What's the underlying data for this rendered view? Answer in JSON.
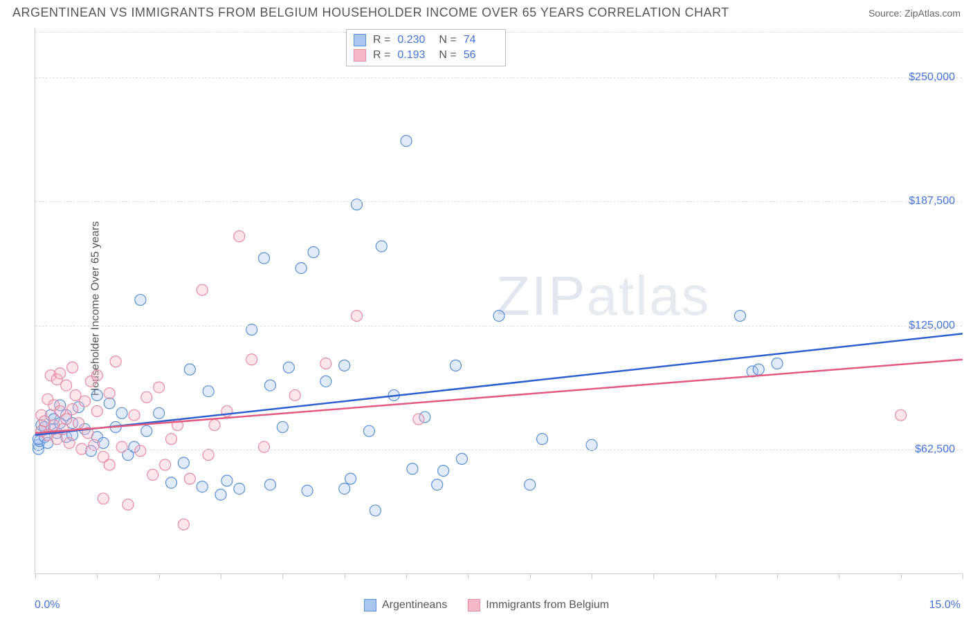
{
  "header": {
    "title": "ARGENTINEAN VS IMMIGRANTS FROM BELGIUM HOUSEHOLDER INCOME OVER 65 YEARS CORRELATION CHART",
    "source_label": "Source: ZipAtlas.com"
  },
  "chart": {
    "type": "scatter",
    "y_axis_title": "Householder Income Over 65 years",
    "xlim": [
      0,
      15
    ],
    "ylim": [
      0,
      275000
    ],
    "x_min_label": "0.0%",
    "x_max_label": "15.0%",
    "x_ticks_pct": [
      0,
      1,
      2,
      3,
      4,
      5,
      6,
      7,
      8,
      9,
      10,
      11,
      12,
      13,
      14,
      15
    ],
    "y_gridlines": [
      62500,
      125000,
      187500,
      250000
    ],
    "y_tick_labels": [
      "$62,500",
      "$125,000",
      "$187,500",
      "$250,000"
    ],
    "background_color": "#ffffff",
    "grid_color": "#dddddd",
    "axis_color": "#cccccc",
    "tick_label_color": "#4472e4",
    "point_radius": 8,
    "point_stroke_width": 1.2,
    "point_fill_opacity": 0.35,
    "trend_line_width": 2.5,
    "series": [
      {
        "name": "Argentineans",
        "color_fill": "#a8c6f0",
        "color_stroke": "#5b8fd6",
        "trend_color": "#2b5fd0",
        "R": "0.230",
        "N": "74",
        "trend": {
          "x1": 0,
          "y1": 70000,
          "x2": 15,
          "y2": 121000
        },
        "points": [
          [
            0.05,
            63000
          ],
          [
            0.05,
            65000
          ],
          [
            0.07,
            67000
          ],
          [
            0.05,
            68000
          ],
          [
            0.1,
            72000
          ],
          [
            0.1,
            75000
          ],
          [
            0.15,
            74000
          ],
          [
            0.15,
            69000
          ],
          [
            0.2,
            66000
          ],
          [
            0.25,
            80000
          ],
          [
            0.3,
            78000
          ],
          [
            0.3,
            73000
          ],
          [
            0.35,
            71000
          ],
          [
            0.4,
            85000
          ],
          [
            0.4,
            76000
          ],
          [
            0.5,
            69000
          ],
          [
            0.5,
            80000
          ],
          [
            0.6,
            76000
          ],
          [
            0.6,
            70000
          ],
          [
            0.7,
            84000
          ],
          [
            0.8,
            73000
          ],
          [
            0.9,
            62000
          ],
          [
            1.0,
            69000
          ],
          [
            1.0,
            90000
          ],
          [
            1.1,
            66000
          ],
          [
            1.2,
            86000
          ],
          [
            1.3,
            74000
          ],
          [
            1.4,
            81000
          ],
          [
            1.5,
            60000
          ],
          [
            1.6,
            64000
          ],
          [
            1.7,
            138000
          ],
          [
            1.8,
            72000
          ],
          [
            2.0,
            81000
          ],
          [
            2.2,
            46000
          ],
          [
            2.4,
            56000
          ],
          [
            2.5,
            103000
          ],
          [
            2.7,
            44000
          ],
          [
            2.8,
            92000
          ],
          [
            3.0,
            40000
          ],
          [
            3.1,
            47000
          ],
          [
            3.3,
            43000
          ],
          [
            3.5,
            123000
          ],
          [
            3.7,
            159000
          ],
          [
            3.8,
            95000
          ],
          [
            3.8,
            45000
          ],
          [
            4.0,
            74000
          ],
          [
            4.1,
            104000
          ],
          [
            4.3,
            154000
          ],
          [
            4.4,
            42000
          ],
          [
            4.5,
            162000
          ],
          [
            4.7,
            97000
          ],
          [
            5.0,
            105000
          ],
          [
            5.0,
            43000
          ],
          [
            5.1,
            48000
          ],
          [
            5.2,
            186000
          ],
          [
            5.4,
            72000
          ],
          [
            5.5,
            32000
          ],
          [
            5.6,
            165000
          ],
          [
            5.8,
            90000
          ],
          [
            6.0,
            218000
          ],
          [
            6.1,
            53000
          ],
          [
            6.3,
            79000
          ],
          [
            6.5,
            45000
          ],
          [
            6.6,
            52000
          ],
          [
            6.8,
            105000
          ],
          [
            6.9,
            58000
          ],
          [
            7.5,
            130000
          ],
          [
            8.0,
            45000
          ],
          [
            8.2,
            68000
          ],
          [
            9.0,
            65000
          ],
          [
            11.4,
            130000
          ],
          [
            11.6,
            102000
          ],
          [
            11.7,
            103000
          ],
          [
            12.0,
            106000
          ]
        ]
      },
      {
        "name": "Immigrants from Belgium",
        "color_fill": "#f5b8c6",
        "color_stroke": "#e68aa2",
        "trend_color": "#e25a7e",
        "R": "0.193",
        "N": "56",
        "trend": {
          "x1": 0,
          "y1": 71000,
          "x2": 15,
          "y2": 108000
        },
        "points": [
          [
            0.1,
            72000
          ],
          [
            0.1,
            80000
          ],
          [
            0.15,
            77000
          ],
          [
            0.2,
            88000
          ],
          [
            0.2,
            70000
          ],
          [
            0.25,
            100000
          ],
          [
            0.3,
            75000
          ],
          [
            0.3,
            85000
          ],
          [
            0.35,
            98000
          ],
          [
            0.35,
            68000
          ],
          [
            0.4,
            101000
          ],
          [
            0.4,
            82000
          ],
          [
            0.45,
            73000
          ],
          [
            0.5,
            95000
          ],
          [
            0.5,
            78000
          ],
          [
            0.55,
            66000
          ],
          [
            0.6,
            104000
          ],
          [
            0.6,
            83000
          ],
          [
            0.65,
            90000
          ],
          [
            0.7,
            76000
          ],
          [
            0.75,
            63000
          ],
          [
            0.8,
            87000
          ],
          [
            0.85,
            71000
          ],
          [
            0.9,
            97000
          ],
          [
            0.95,
            65000
          ],
          [
            1.0,
            82000
          ],
          [
            1.0,
            100000
          ],
          [
            1.1,
            59000
          ],
          [
            1.1,
            38000
          ],
          [
            1.2,
            91000
          ],
          [
            1.2,
            55000
          ],
          [
            1.3,
            107000
          ],
          [
            1.4,
            64000
          ],
          [
            1.5,
            35000
          ],
          [
            1.6,
            80000
          ],
          [
            1.7,
            62000
          ],
          [
            1.8,
            89000
          ],
          [
            1.9,
            50000
          ],
          [
            2.0,
            94000
          ],
          [
            2.1,
            55000
          ],
          [
            2.2,
            68000
          ],
          [
            2.3,
            75000
          ],
          [
            2.4,
            25000
          ],
          [
            2.5,
            48000
          ],
          [
            2.7,
            143000
          ],
          [
            2.8,
            60000
          ],
          [
            2.9,
            75000
          ],
          [
            3.1,
            82000
          ],
          [
            3.3,
            170000
          ],
          [
            3.5,
            108000
          ],
          [
            3.7,
            64000
          ],
          [
            4.2,
            90000
          ],
          [
            4.7,
            106000
          ],
          [
            5.2,
            130000
          ],
          [
            6.2,
            78000
          ],
          [
            14.0,
            80000
          ]
        ]
      }
    ],
    "legend_bottom": [
      {
        "label": "Argentineans",
        "series": 0
      },
      {
        "label": "Immigrants from Belgium",
        "series": 1
      }
    ],
    "watermark": {
      "text_bold": "ZIP",
      "text_thin": "atlas"
    }
  }
}
